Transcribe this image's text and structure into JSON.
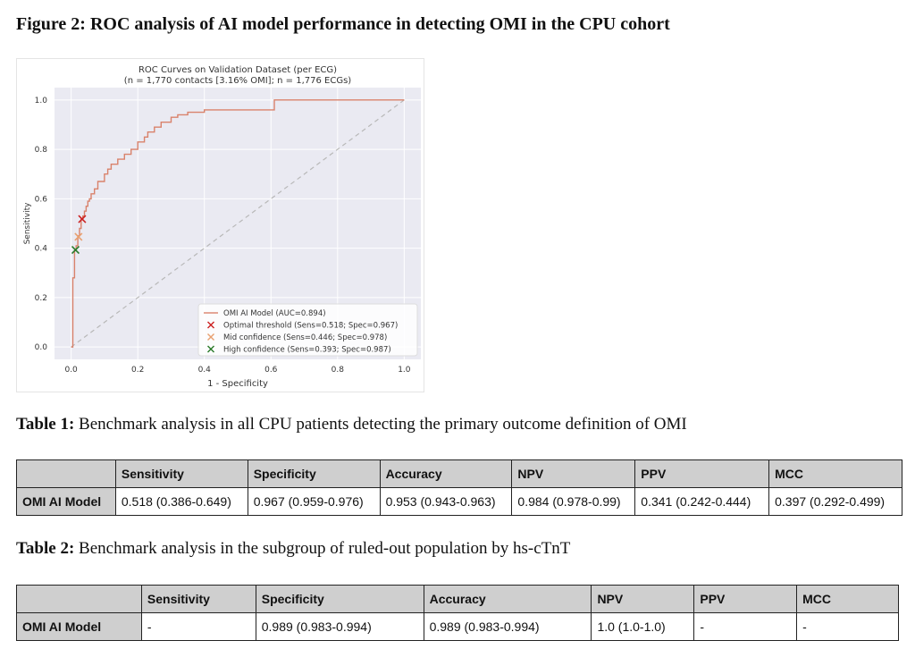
{
  "figure": {
    "caption_bold": "Figure 2: ROC analysis of AI model performance in detecting OMI in the CPU cohort"
  },
  "chart_data": {
    "type": "line",
    "title": "ROC Curves on Validation Dataset (per ECG)",
    "subtitle": "(n = 1,770 contacts [3.16% OMI]; n = 1,776 ECGs)",
    "xlabel": "1 - Specificity",
    "ylabel": "Sensitivity",
    "xlim": [
      -0.05,
      1.05
    ],
    "ylim": [
      -0.05,
      1.05
    ],
    "xticks": [
      0.0,
      0.2,
      0.4,
      0.6,
      0.8,
      1.0
    ],
    "xtick_labels": [
      "0.0",
      "0.2",
      "0.4",
      "0.6",
      "0.8",
      "1.0"
    ],
    "yticks": [
      0.0,
      0.2,
      0.4,
      0.6,
      0.8,
      1.0
    ],
    "ytick_labels": [
      "0.0",
      "0.2",
      "0.4",
      "0.6",
      "0.8",
      "1.0"
    ],
    "grid": true,
    "legend_position": "lower-right",
    "series": [
      {
        "name": "OMI AI Model (AUC=0.894)",
        "color": "#d9826b",
        "x": [
          0.0,
          0.005,
          0.005,
          0.01,
          0.01,
          0.015,
          0.015,
          0.02,
          0.02,
          0.025,
          0.025,
          0.03,
          0.03,
          0.035,
          0.035,
          0.04,
          0.04,
          0.045,
          0.045,
          0.05,
          0.05,
          0.055,
          0.055,
          0.06,
          0.06,
          0.07,
          0.07,
          0.08,
          0.08,
          0.1,
          0.1,
          0.11,
          0.11,
          0.12,
          0.12,
          0.14,
          0.14,
          0.16,
          0.16,
          0.18,
          0.18,
          0.2,
          0.2,
          0.22,
          0.22,
          0.23,
          0.23,
          0.25,
          0.25,
          0.27,
          0.27,
          0.3,
          0.3,
          0.32,
          0.32,
          0.35,
          0.35,
          0.4,
          0.4,
          0.61,
          0.61,
          1.0
        ],
        "y": [
          0.0,
          0.0,
          0.28,
          0.28,
          0.39,
          0.39,
          0.41,
          0.41,
          0.45,
          0.45,
          0.48,
          0.48,
          0.518,
          0.518,
          0.53,
          0.53,
          0.55,
          0.55,
          0.57,
          0.57,
          0.59,
          0.59,
          0.6,
          0.6,
          0.62,
          0.62,
          0.64,
          0.64,
          0.67,
          0.67,
          0.7,
          0.7,
          0.72,
          0.72,
          0.74,
          0.74,
          0.76,
          0.76,
          0.78,
          0.78,
          0.8,
          0.8,
          0.83,
          0.83,
          0.85,
          0.85,
          0.87,
          0.87,
          0.89,
          0.89,
          0.91,
          0.91,
          0.93,
          0.93,
          0.94,
          0.94,
          0.95,
          0.95,
          0.96,
          0.96,
          1.0,
          1.0
        ]
      }
    ],
    "reference_line": {
      "x": [
        0,
        1
      ],
      "y": [
        0,
        1
      ],
      "color": "#b8b8b8"
    },
    "markers": [
      {
        "name": "Optimal threshold (Sens=0.518; Spec=0.967)",
        "x": 0.033,
        "y": 0.518,
        "color": "#cc2222"
      },
      {
        "name": "Mid confidence (Sens=0.446; Spec=0.978)",
        "x": 0.022,
        "y": 0.446,
        "color": "#e8a070"
      },
      {
        "name": "High confidence (Sens=0.393; Spec=0.987)",
        "x": 0.013,
        "y": 0.393,
        "color": "#2a7a2a"
      }
    ]
  },
  "table1": {
    "caption_bold": "Table 1:",
    "caption_rest": " Benchmark analysis in all CPU patients detecting the primary outcome definition of OMI",
    "headers": [
      "",
      "Sensitivity",
      "Specificity",
      "Accuracy",
      "NPV",
      "PPV",
      "MCC"
    ],
    "row": [
      "OMI AI Model",
      "0.518 (0.386-0.649)",
      "0.967 (0.959-0.976)",
      "0.953 (0.943-0.963)",
      "0.984 (0.978-0.99)",
      "0.341 (0.242-0.444)",
      "0.397 (0.292-0.499)"
    ]
  },
  "table2": {
    "caption_bold": "Table 2:",
    "caption_rest": " Benchmark analysis in the subgroup of ruled-out population by hs-cTnT",
    "headers": [
      "",
      "Sensitivity",
      "Specificity",
      "Accuracy",
      "NPV",
      "PPV",
      "MCC"
    ],
    "row": [
      "OMI AI Model",
      "-",
      "0.989 (0.983-0.994)",
      "0.989 (0.983-0.994)",
      "1.0 (1.0-1.0)",
      "-",
      "-"
    ]
  }
}
